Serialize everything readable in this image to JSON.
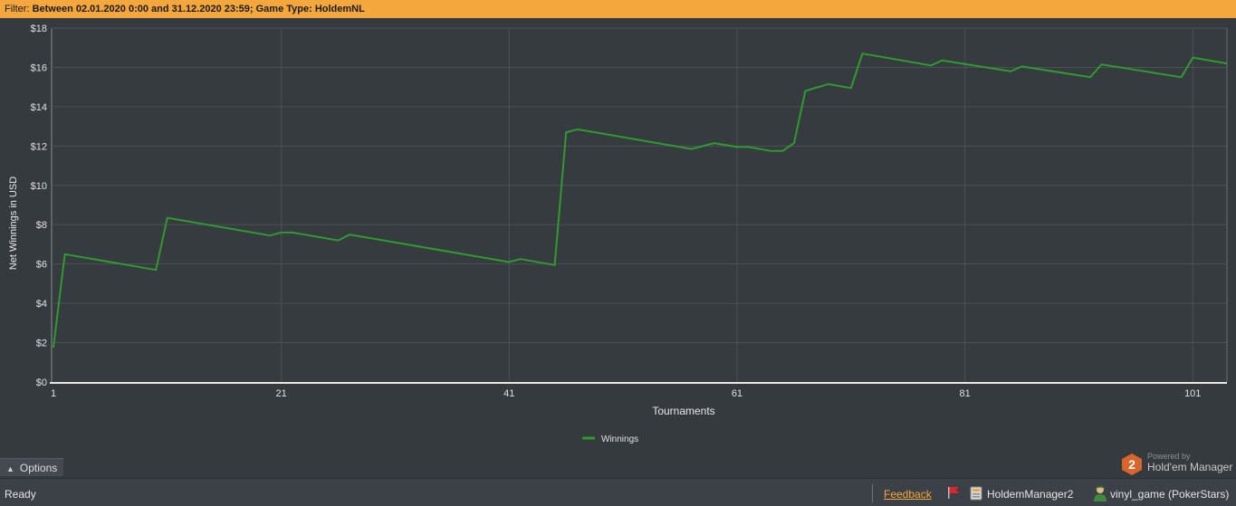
{
  "filter": {
    "prefix": "Filter:",
    "text": "Between 02.01.2020 0:00 and 31.12.2020 23:59; Game Type: HoldemNL"
  },
  "colors": {
    "accent": "#f4a73c",
    "background": "#353a3f",
    "series_winnings": "#2f9a2f"
  },
  "chart_data": {
    "type": "line",
    "xlabel": "Tournaments",
    "ylabel": "Net Winnings in USD",
    "xlim": [
      1,
      104
    ],
    "ylim": [
      0,
      18
    ],
    "x_ticks": [
      "1",
      "21",
      "41",
      "61",
      "81",
      "101"
    ],
    "y_ticks": [
      "$0",
      "$2",
      "$4",
      "$6",
      "$8",
      "$10",
      "$12",
      "$14",
      "$16",
      "$18"
    ],
    "grid": true,
    "legend_position": "bottom-center",
    "series": [
      {
        "name": "Winnings",
        "points": [
          [
            1,
            1.75
          ],
          [
            2,
            6.5
          ],
          [
            10,
            5.7
          ],
          [
            11,
            8.35
          ],
          [
            20,
            7.45
          ],
          [
            21,
            7.6
          ],
          [
            22,
            7.6
          ],
          [
            26,
            7.2
          ],
          [
            27,
            7.5
          ],
          [
            41,
            6.1
          ],
          [
            42,
            6.25
          ],
          [
            45,
            5.95
          ],
          [
            46,
            12.7
          ],
          [
            47,
            12.85
          ],
          [
            57,
            11.85
          ],
          [
            59,
            12.15
          ],
          [
            61,
            11.95
          ],
          [
            62,
            11.95
          ],
          [
            64,
            11.75
          ],
          [
            65,
            11.75
          ],
          [
            66,
            12.15
          ],
          [
            67,
            14.8
          ],
          [
            69,
            15.15
          ],
          [
            71,
            14.95
          ],
          [
            72,
            16.7
          ],
          [
            78,
            16.1
          ],
          [
            79,
            16.35
          ],
          [
            85,
            15.8
          ],
          [
            86,
            16.05
          ],
          [
            92,
            15.5
          ],
          [
            93,
            16.15
          ],
          [
            100,
            15.5
          ],
          [
            101,
            16.5
          ],
          [
            104,
            16.2
          ]
        ]
      }
    ]
  },
  "options_tab": {
    "label": "Options"
  },
  "logo": {
    "powered_by": "Powered by",
    "brand": "Hold'em Manager",
    "badge": "2"
  },
  "status": {
    "ready": "Ready",
    "feedback": "Feedback",
    "database": "HoldemManager2",
    "player": "vinyl_game (PokerStars)"
  }
}
